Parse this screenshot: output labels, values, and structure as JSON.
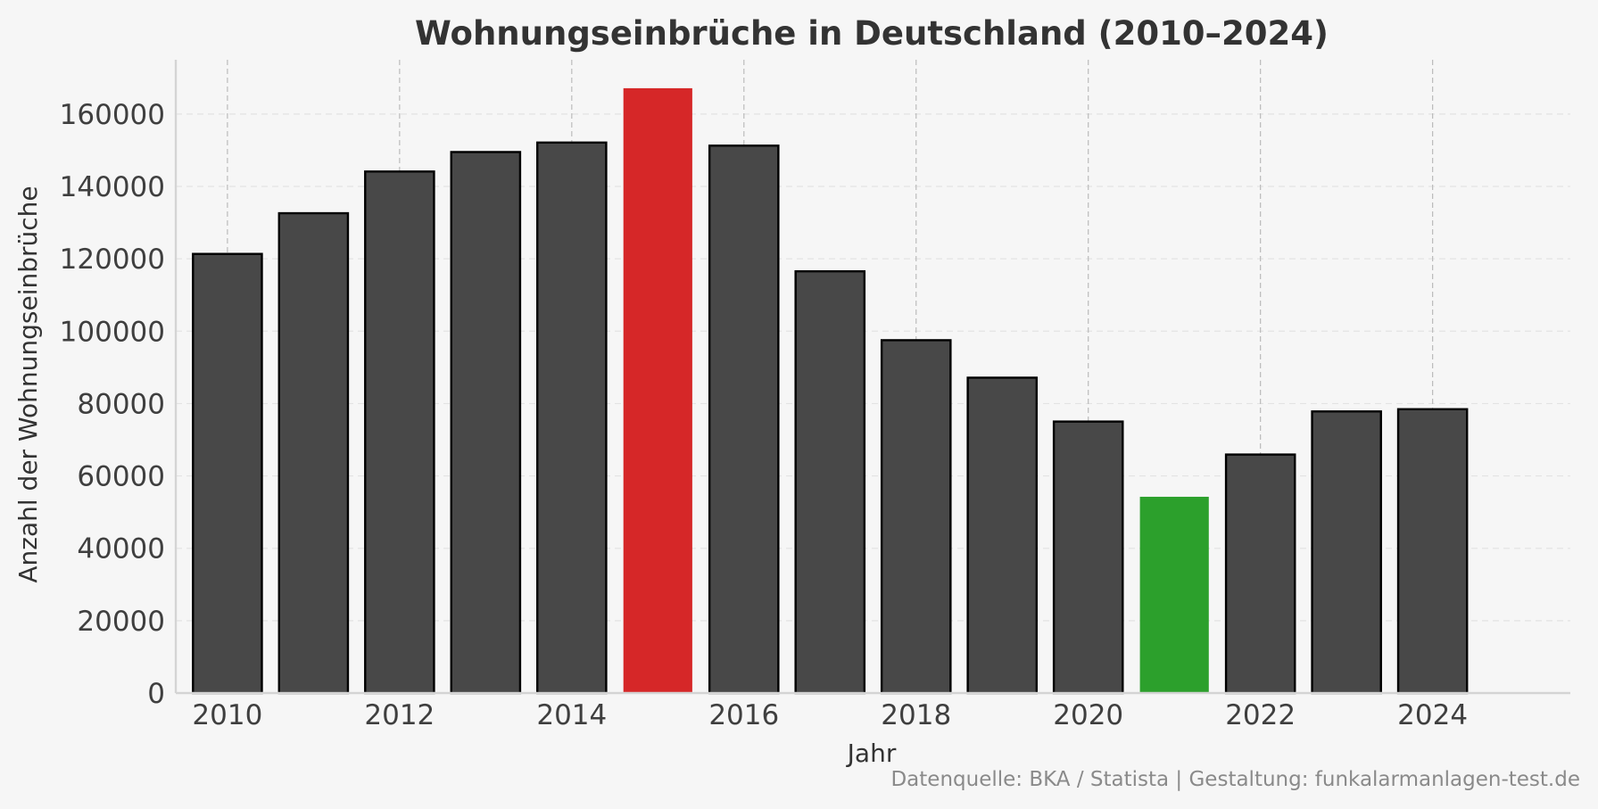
{
  "chart_data": {
    "type": "bar",
    "title": "Wohnungseinbrüche in Deutschland (2010–2024)",
    "xlabel": "Jahr",
    "ylabel": "Anzahl der Wohnungseinbrüche",
    "source": "Datenquelle: BKA / Statista | Gestaltung: funkalarmanlagen-test.de",
    "categories": [
      2010,
      2011,
      2012,
      2013,
      2014,
      2015,
      2016,
      2017,
      2018,
      2019,
      2020,
      2021,
      2022,
      2023,
      2024
    ],
    "values": [
      121347,
      132595,
      144117,
      149500,
      152123,
      167136,
      151265,
      116540,
      97504,
      87145,
      75023,
      54236,
      65908,
      77819,
      78436
    ],
    "ylim": [
      0,
      175000
    ],
    "xlim": [
      2009.4,
      2025.6
    ],
    "yticks": [
      0,
      20000,
      40000,
      60000,
      80000,
      100000,
      120000,
      140000,
      160000
    ],
    "xticks": [
      2010,
      2012,
      2014,
      2016,
      2018,
      2020,
      2022,
      2024
    ],
    "grid": true,
    "legend": "none",
    "colors": {
      "default": "#484848",
      "highlight_max": "#d62728",
      "highlight_min": "#2ca02c",
      "edge": "#000000",
      "grid": "#e3e3e3",
      "vgrid": "#bbbbbb",
      "axis": "#d4d4d4",
      "background": "#f6f6f6"
    },
    "highlights": {
      "max_year": 2015,
      "min_year": 2021
    }
  }
}
